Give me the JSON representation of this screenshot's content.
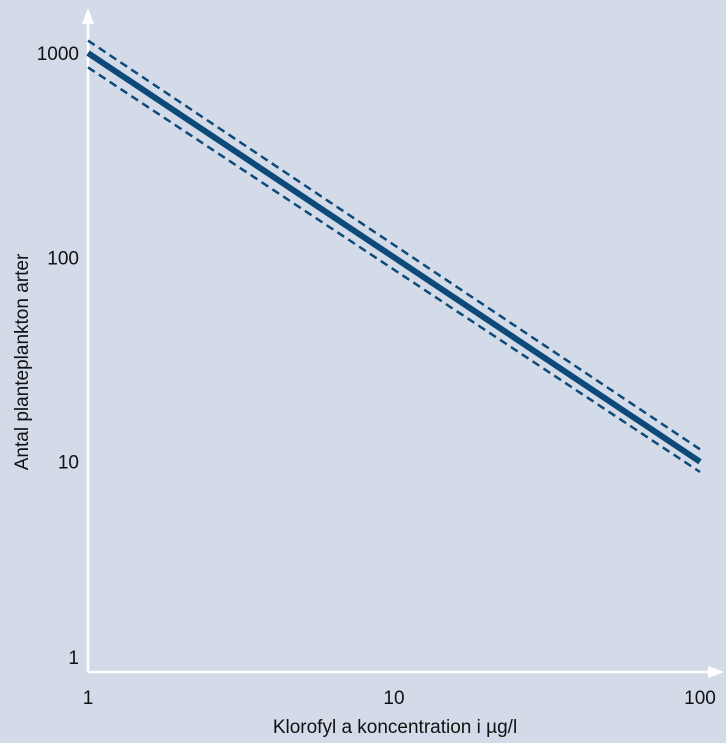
{
  "chart_data": {
    "type": "line",
    "title": "",
    "xlabel": "Klorofyl a koncentration i µg/l",
    "ylabel": "Antal planteplankton arter",
    "xscale": "log",
    "yscale": "log",
    "xlim": [
      1,
      100
    ],
    "ylim": [
      1,
      1000
    ],
    "xticks": [
      {
        "value": 1,
        "label": "1"
      },
      {
        "value": 10,
        "label": "10"
      },
      {
        "value": 100,
        "label": "100"
      }
    ],
    "yticks": [
      {
        "value": 1,
        "label": "1"
      },
      {
        "value": 10,
        "label": "10"
      },
      {
        "value": 100,
        "label": "100"
      },
      {
        "value": 1000,
        "label": "1000"
      }
    ],
    "grid": false,
    "legend": "none",
    "series": [
      {
        "style": "solid",
        "x": [
          1,
          100
        ],
        "y": [
          1000,
          10
        ]
      },
      {
        "style": "dashed",
        "x": [
          1,
          100
        ],
        "y": [
          1150,
          11.5
        ]
      },
      {
        "style": "dashed",
        "x": [
          1,
          100
        ],
        "y": [
          850,
          8.9
        ]
      }
    ],
    "colors": {
      "line": "#0d4a7a",
      "axis": "#ffffff",
      "background": "#d3dbe9"
    }
  }
}
